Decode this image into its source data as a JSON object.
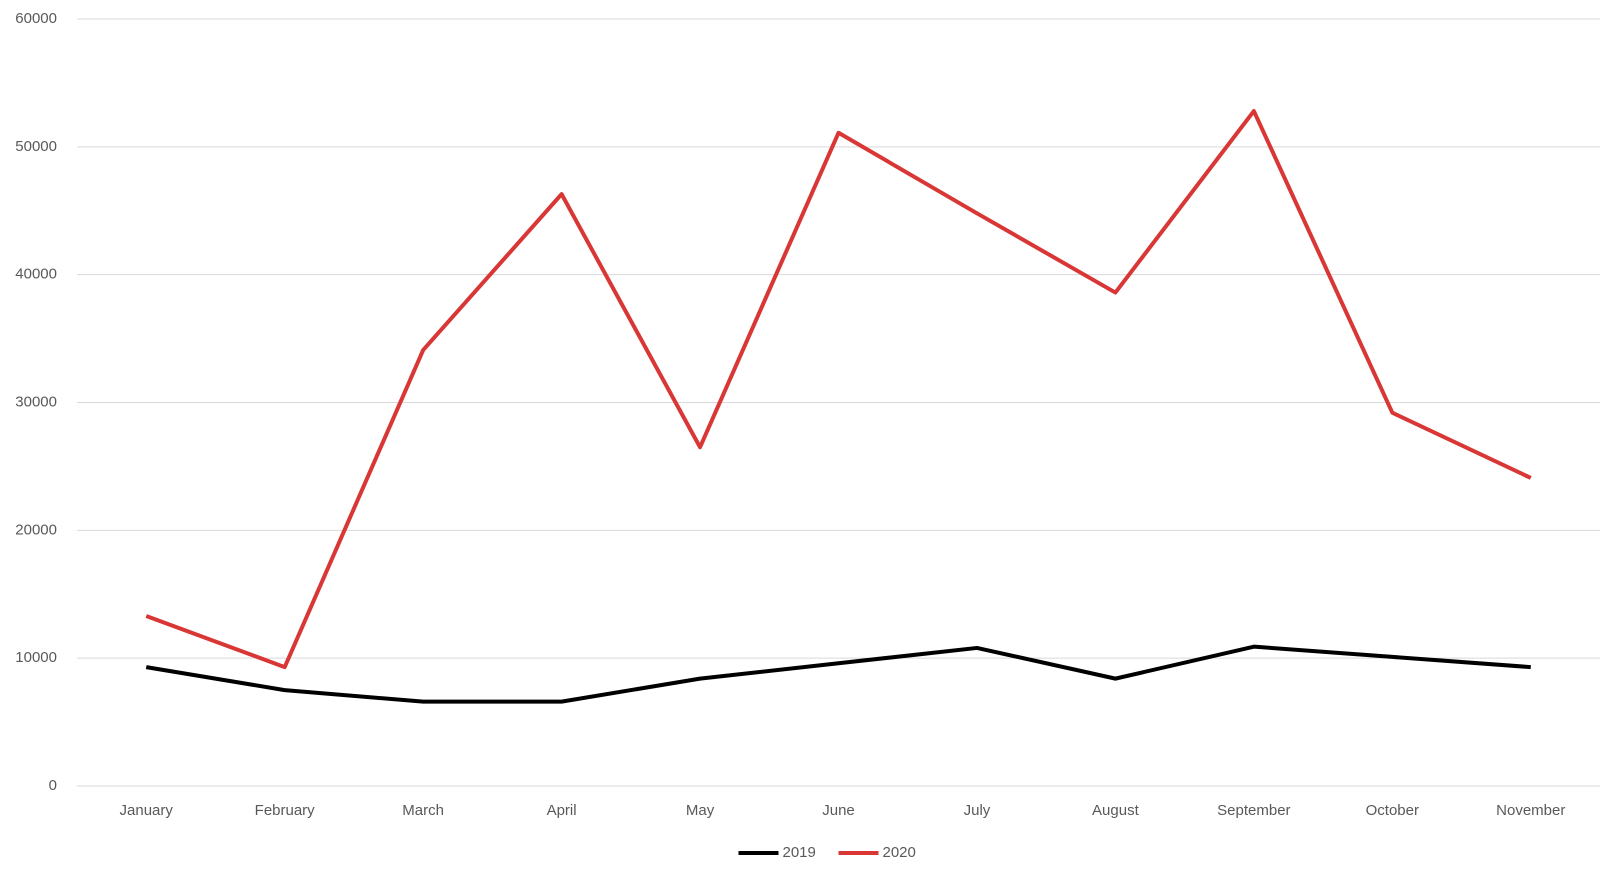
{
  "chart_data": {
    "type": "line",
    "categories": [
      "January",
      "February",
      "March",
      "April",
      "May",
      "June",
      "July",
      "August",
      "September",
      "October",
      "November"
    ],
    "series": [
      {
        "name": "2019",
        "color": "#000000",
        "values": [
          9300,
          7500,
          6600,
          6600,
          8400,
          9600,
          10800,
          8400,
          10900,
          10100,
          9300
        ]
      },
      {
        "name": "2020",
        "color": "#d93636",
        "values": [
          13300,
          9300,
          34100,
          46300,
          26500,
          51100,
          44800,
          38600,
          52800,
          29200,
          24100
        ]
      }
    ],
    "ylim": [
      0,
      60000
    ],
    "yticks": [
      0,
      10000,
      20000,
      30000,
      40000,
      50000,
      60000
    ],
    "grid": true,
    "legend": "bottom"
  }
}
